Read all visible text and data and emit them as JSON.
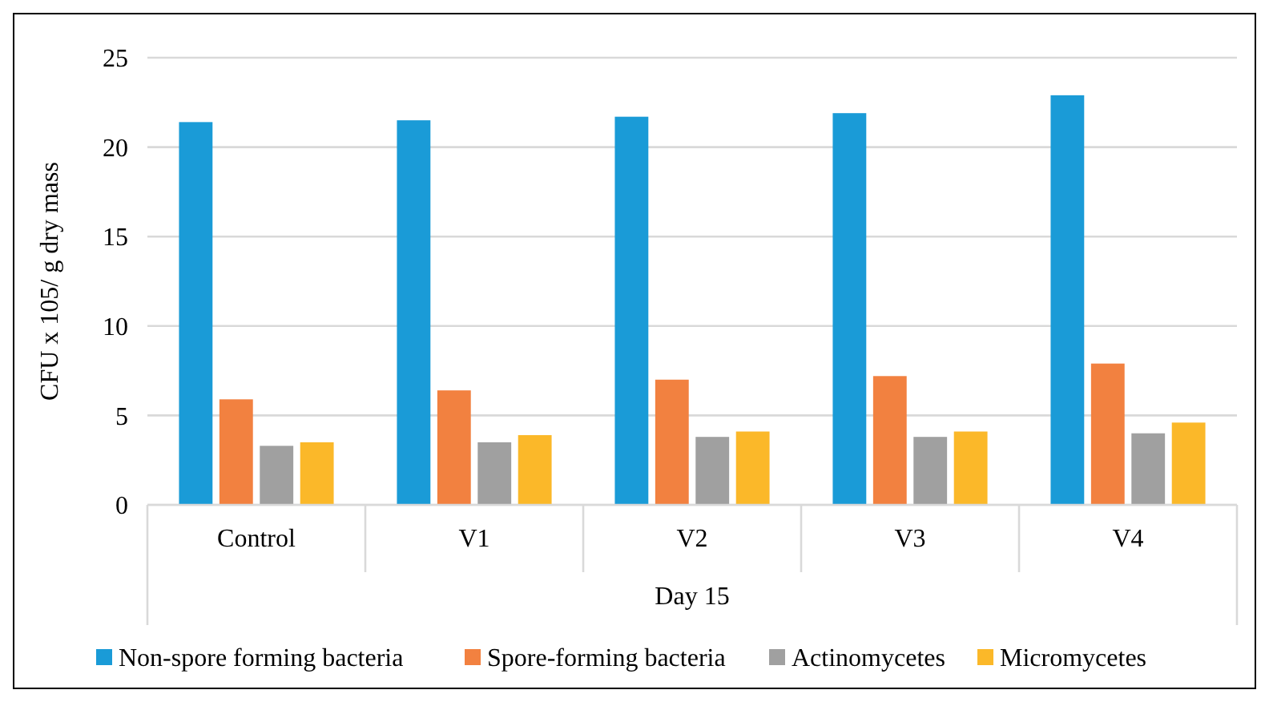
{
  "chart_data": {
    "type": "bar",
    "categories": [
      "Control",
      "V1",
      "V2",
      "V3",
      "V4"
    ],
    "xlabel": "Day 15",
    "ylabel": "CFU x 105/ g dry mass",
    "ylim": [
      0,
      25
    ],
    "yticks": [
      0,
      5,
      10,
      15,
      20,
      25
    ],
    "grid": "y",
    "legend": "bottom",
    "series": [
      {
        "name": "Non-spore forming bacteria",
        "color": "#1a9bd7",
        "values": [
          21.4,
          21.5,
          21.7,
          21.9,
          22.9
        ]
      },
      {
        "name": "Spore-forming bacteria",
        "color": "#f28140",
        "values": [
          5.9,
          6.4,
          7.0,
          7.2,
          7.9
        ]
      },
      {
        "name": "Actinomycetes",
        "color": "#a0a0a0",
        "values": [
          3.3,
          3.5,
          3.8,
          3.8,
          4.0
        ]
      },
      {
        "name": "Micromycetes",
        "color": "#fbb829",
        "values": [
          3.5,
          3.9,
          4.1,
          4.1,
          4.6
        ]
      }
    ]
  }
}
